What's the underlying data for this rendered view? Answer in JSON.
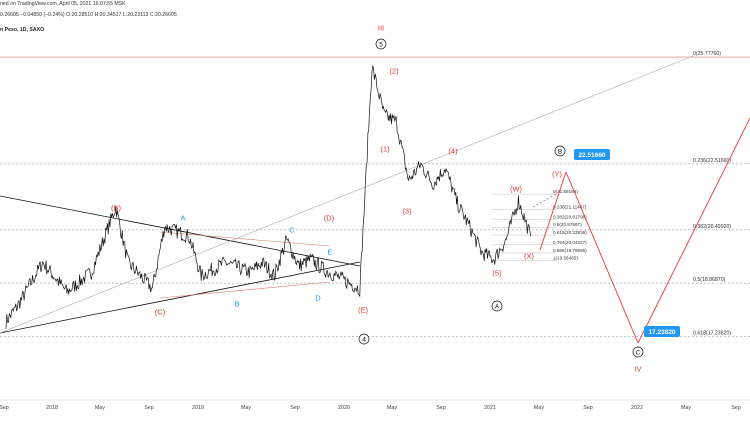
{
  "header": {
    "published": "ned on TradingView.com, April 05, 2021 16:07:55 MSK",
    "ohlc": "0.26605 −0.04850 (−0.24%) O:20.28510 H:20.34517 L:20.23113 C:20.26605",
    "symbol": "n Peso, 1D, SAXO"
  },
  "chart_data": {
    "type": "line",
    "price_range_visible": [
      15.3,
      26.3
    ],
    "x_axis_labels": [
      "Sep",
      "2018",
      "May",
      "Sep",
      "2019",
      "May",
      "Sep",
      "2020",
      "May",
      "Sep",
      "2021",
      "May",
      "Sep",
      "2022",
      "May",
      "Sep"
    ],
    "series": [
      {
        "x": [
          "2017-09",
          "2017-10",
          "2017-12",
          "2018-02",
          "2018-04",
          "2018-06",
          "2018-07",
          "2018-09",
          "2018-10",
          "2018-12",
          "2019-01",
          "2019-03",
          "2019-05",
          "2019-06",
          "2019-07",
          "2019-08",
          "2019-09",
          "2019-10",
          "2019-11",
          "2020-01",
          "2020-02",
          "2020-03",
          "2020-04",
          "2020-05",
          "2020-06",
          "2020-07",
          "2020-08",
          "2020-09",
          "2020-10",
          "2020-11",
          "2020-12",
          "2021-01",
          "2021-02",
          "2021-03",
          "2021-04"
        ],
        "values": [
          17.7,
          18.2,
          19.5,
          18.6,
          19.2,
          21.2,
          19.5,
          18.7,
          20.6,
          20.3,
          19.1,
          19.5,
          19.2,
          19.5,
          19.1,
          20.2,
          19.4,
          19.6,
          19.3,
          18.9,
          18.7,
          25.5,
          24.0,
          23.8,
          22.0,
          22.5,
          21.9,
          22.4,
          21.3,
          20.6,
          19.8,
          19.6,
          20.2,
          21.4,
          20.3
        ]
      }
    ],
    "wave_labels": [
      "(B)",
      "A",
      "C",
      "(D)",
      "E",
      "(C)",
      "B",
      "D",
      "(E)",
      "5",
      "III",
      "(1)",
      "(2)",
      "(3)",
      "(4)",
      "(5)",
      "(W)",
      "(X)",
      "(Y)",
      "B",
      "A",
      "4",
      "C",
      "IV"
    ],
    "fib_levels": [
      {
        "label": "0(25.77760)",
        "value": 25.7776
      },
      {
        "label": "0.236(22.51660)",
        "value": 22.5166
      },
      {
        "label": "0.382(20.49920)",
        "value": 20.4992
      },
      {
        "label": "0.5(18.86870)",
        "value": 18.8687
      },
      {
        "label": "0.618(17.23820)",
        "value": 17.2382
      }
    ],
    "small_fib_levels": [
      {
        "label": "0(21.59168)",
        "value": 21.59168
      },
      {
        "label": "0.236(21.11407)",
        "value": 21.11407
      },
      {
        "label": "0.382(20.81798)",
        "value": 20.81798
      },
      {
        "label": "0.5(20.57867)",
        "value": 20.57867
      },
      {
        "label": "0.618(20.33936)",
        "value": 20.33936
      },
      {
        "label": "0.764(20.04327)",
        "value": 20.04327
      },
      {
        "label": "0.886(19.79585)",
        "value": 19.79585
      },
      {
        "label": "1(19.56465)",
        "value": 19.56465
      }
    ],
    "target_labels": [
      "22.51660",
      "17.23820"
    ],
    "colors": {
      "price": "#111111",
      "wave": "#e53935",
      "fib": "#9e9e9e",
      "blue": "#2196f3",
      "channel": "#e57373"
    }
  }
}
